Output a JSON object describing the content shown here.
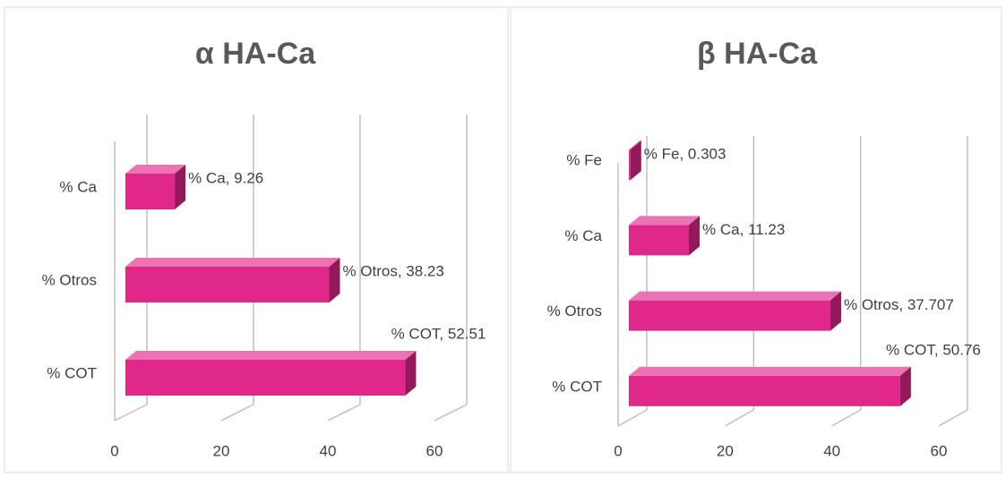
{
  "chart_data": [
    {
      "type": "bar",
      "orientation": "horizontal",
      "title": "α HA-Ca",
      "categories": [
        "% Ca",
        "% Otros",
        "% COT"
      ],
      "values": [
        9.26,
        38.23,
        52.51
      ],
      "value_labels": [
        "% Ca, 9.26",
        "% Otros, 38.23",
        "% COT, 52.51"
      ],
      "color": "#e0288a",
      "xlim": [
        0,
        60
      ],
      "xticks": [
        0,
        20,
        40,
        60
      ],
      "grid": true
    },
    {
      "type": "bar",
      "orientation": "horizontal",
      "title": "β HA-Ca",
      "categories": [
        "% Fe",
        "% Ca",
        "% Otros",
        "% COT"
      ],
      "values": [
        0.303,
        11.23,
        37.707,
        50.76
      ],
      "value_labels": [
        "% Fe, 0.303",
        "% Ca, 11.23",
        "% Otros, 37.707",
        "% COT, 50.76"
      ],
      "color": "#e0288a",
      "xlim": [
        0,
        60
      ],
      "xticks": [
        0,
        20,
        40,
        60
      ],
      "grid": true
    }
  ]
}
